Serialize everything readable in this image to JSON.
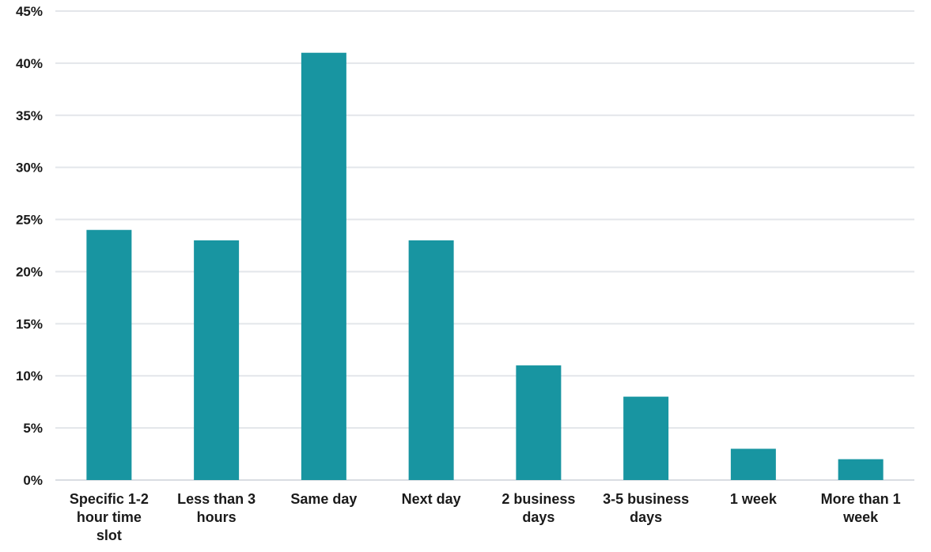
{
  "chart_data": {
    "type": "bar",
    "title": "",
    "xlabel": "",
    "ylabel": "",
    "categories": [
      [
        "Specific 1-2",
        "hour time",
        "slot"
      ],
      [
        "Less than 3",
        "hours"
      ],
      [
        "Same day"
      ],
      [
        "Next day"
      ],
      [
        "2 business",
        "days"
      ],
      [
        "3-5 business",
        "days"
      ],
      [
        "1 week"
      ],
      [
        "More than 1",
        "week"
      ]
    ],
    "values": [
      24,
      23,
      41,
      23,
      11,
      8,
      3,
      2
    ],
    "ylim": [
      0,
      45
    ],
    "y_ticks": [
      0,
      5,
      10,
      15,
      20,
      25,
      30,
      35,
      40,
      45
    ],
    "y_tick_labels": [
      "0%",
      "5%",
      "10%",
      "15%",
      "20%",
      "25%",
      "30%",
      "35%",
      "40%",
      "45%"
    ],
    "grid": true,
    "legend": "none",
    "bar_color": "#1895a1",
    "grid_color": "#e3e6ea"
  }
}
